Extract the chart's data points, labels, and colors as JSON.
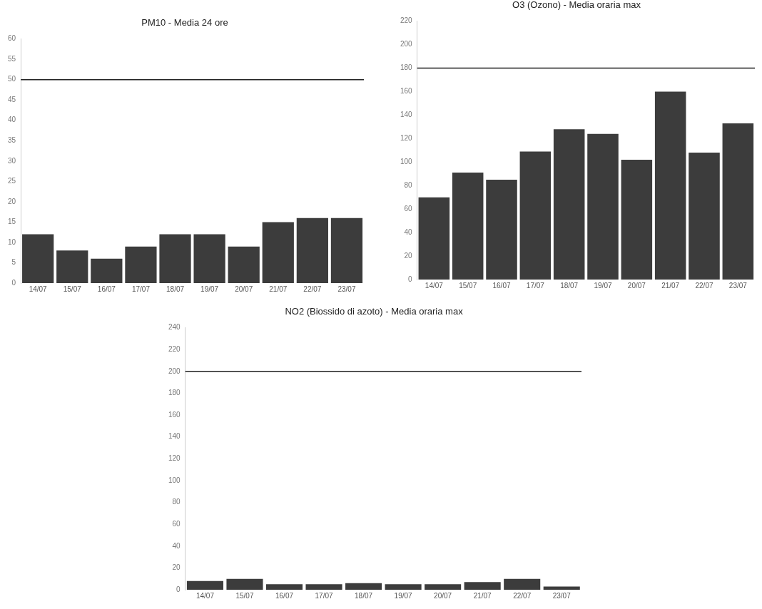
{
  "chart_data": [
    {
      "type": "bar",
      "title": "PM10 - Media 24 ore",
      "categories": [
        "14/07",
        "15/07",
        "16/07",
        "17/07",
        "18/07",
        "19/07",
        "20/07",
        "21/07",
        "22/07",
        "23/07"
      ],
      "values": [
        12,
        8,
        6,
        9,
        12,
        12,
        9,
        15,
        16,
        16
      ],
      "color": "#3c3c3c",
      "ylim": [
        0,
        60
      ],
      "yticks": [
        0,
        5,
        10,
        15,
        20,
        25,
        30,
        35,
        40,
        45,
        50,
        55,
        60
      ],
      "ref_lines": [
        {
          "axis": "y",
          "value": 50,
          "color": "#222222"
        }
      ]
    },
    {
      "type": "bar",
      "title": "O3 (Ozono) - Media oraria max",
      "categories": [
        "14/07",
        "15/07",
        "16/07",
        "17/07",
        "18/07",
        "19/07",
        "20/07",
        "21/07",
        "22/07",
        "23/07"
      ],
      "values": [
        70,
        91,
        85,
        109,
        128,
        124,
        102,
        160,
        108,
        133
      ],
      "color": "#3c3c3c",
      "ylim": [
        0,
        220
      ],
      "yticks": [
        0,
        20,
        40,
        60,
        80,
        100,
        120,
        140,
        160,
        180,
        200,
        220
      ],
      "ref_lines": [
        {
          "axis": "y",
          "value": 180,
          "color": "#222222"
        }
      ]
    },
    {
      "type": "bar",
      "title": "NO2 (Biossido di azoto) - Media oraria max",
      "categories": [
        "14/07",
        "15/07",
        "16/07",
        "17/07",
        "18/07",
        "19/07",
        "20/07",
        "21/07",
        "22/07",
        "23/07"
      ],
      "values": [
        8,
        10,
        5,
        5,
        6,
        5,
        5,
        7,
        10,
        3
      ],
      "color": "#3c3c3c",
      "ylim": [
        0,
        240
      ],
      "yticks": [
        0,
        20,
        40,
        60,
        80,
        100,
        120,
        140,
        160,
        180,
        200,
        220,
        240
      ],
      "ref_lines": [
        {
          "axis": "y",
          "value": 200,
          "color": "#222222"
        }
      ]
    }
  ]
}
